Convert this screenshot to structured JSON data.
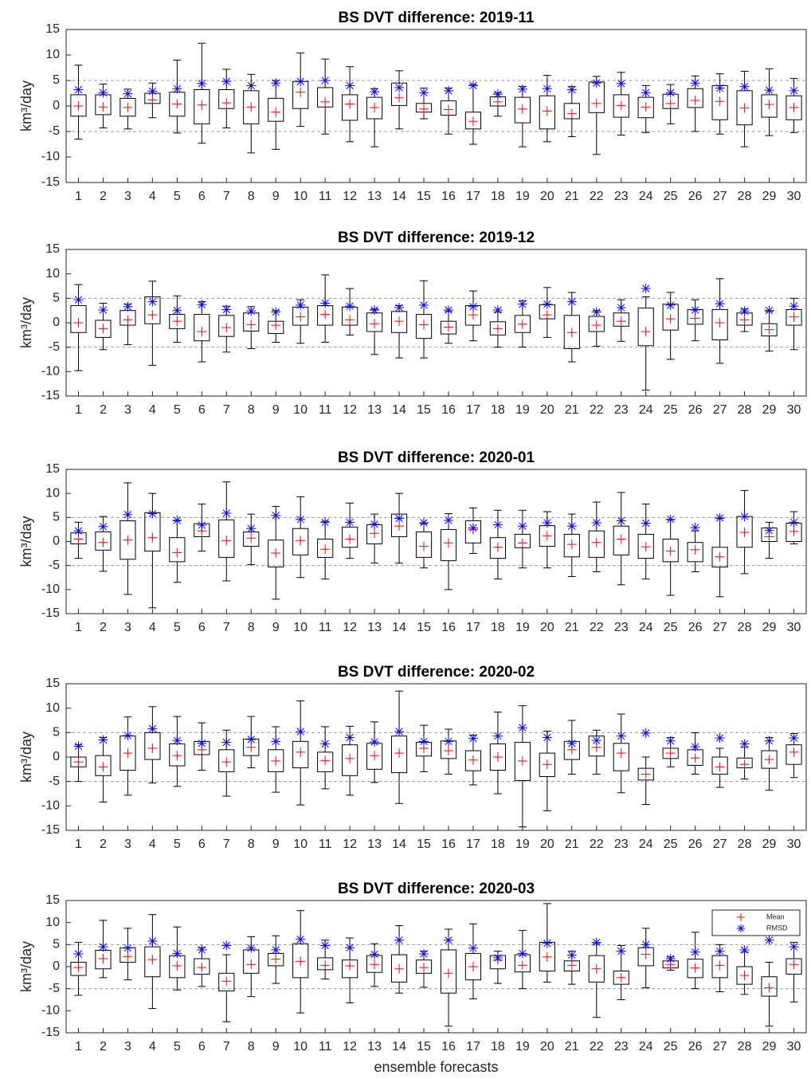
{
  "chart_data": [
    {
      "type": "box",
      "title": "BS DVT difference: 2019-11",
      "ylabel": "km³/day",
      "categories": [
        1,
        2,
        3,
        4,
        5,
        6,
        7,
        8,
        9,
        10,
        11,
        12,
        13,
        14,
        15,
        16,
        17,
        18,
        19,
        20,
        21,
        22,
        23,
        24,
        25,
        26,
        27,
        28,
        29,
        30
      ],
      "whisker_low": [
        -6.5,
        -4.3,
        -4.5,
        -2.3,
        -5.3,
        -7.3,
        -4.3,
        -9.2,
        -8.5,
        -4,
        -5.5,
        -7,
        -8,
        -4.5,
        -2.5,
        -5.5,
        -7.5,
        -2,
        -8,
        -7,
        -6,
        -9.5,
        -5.7,
        -5.2,
        -3.5,
        -5,
        -5.5,
        -8,
        -5.8,
        -5.2
      ],
      "q1": [
        -2,
        -1.7,
        -2,
        0.5,
        -2,
        -3.5,
        -0.5,
        -3.5,
        -3,
        -0.5,
        -0.2,
        -2.8,
        -2.5,
        0.1,
        -1.2,
        -1.8,
        -4.5,
        0,
        -3.3,
        -4.5,
        -2.5,
        -1.3,
        -2.2,
        -2.3,
        -0.5,
        -0.3,
        -2.7,
        -3.7,
        -2.2,
        -2.7
      ],
      "q3": [
        2.2,
        2.2,
        1.5,
        2.5,
        2.7,
        3.2,
        3.2,
        3,
        1.5,
        4.8,
        3.6,
        2.2,
        1.7,
        4.5,
        0.5,
        1,
        -1.2,
        1.8,
        1.7,
        2,
        0.5,
        4.7,
        2.2,
        1.7,
        2.3,
        3.4,
        4,
        3,
        2.2,
        2
      ],
      "whisker_high": [
        8,
        4.3,
        3.3,
        4.5,
        9,
        12.3,
        7.2,
        6.2,
        5,
        10.4,
        9.2,
        7.7,
        3.4,
        6.9,
        3.5,
        3.5,
        4.2,
        2.6,
        3.8,
        6,
        3.8,
        5.8,
        6.6,
        4,
        4.2,
        5.9,
        6.3,
        6.8,
        7.3,
        5.4
      ],
      "mean": [
        0,
        -0.2,
        -0.3,
        1.2,
        0.4,
        0.2,
        0.6,
        -0.2,
        -1.2,
        2.7,
        0.8,
        0.4,
        -0.3,
        1.6,
        -0.6,
        -0.7,
        -3,
        0.8,
        -0.6,
        -1,
        -1.5,
        0.5,
        0.1,
        -0.2,
        0.5,
        1.1,
        0.9,
        -0.4,
        0.3,
        -0.3
      ],
      "rmsd": [
        3.2,
        2.6,
        2.4,
        2.9,
        3.4,
        4.4,
        4.8,
        4,
        4.5,
        4.8,
        5,
        4,
        2.8,
        3.6,
        2.6,
        3,
        4,
        2.3,
        3.3,
        3.4,
        3.2,
        4.5,
        4.4,
        2.6,
        2.6,
        4.5,
        3.5,
        3.8,
        3.1,
        3
      ],
      "ylim": [
        -15,
        15
      ],
      "yticks": [
        -15,
        -10,
        -5,
        0,
        5,
        10,
        15
      ],
      "hlines": [
        -5,
        5
      ],
      "colors": {
        "mean": "#ff0000",
        "rmsd": "#0000ff",
        "box": "#000000"
      }
    },
    {
      "type": "box",
      "title": "BS DVT difference: 2019-12",
      "ylabel": "km³/day",
      "categories": [
        1,
        2,
        3,
        4,
        5,
        6,
        7,
        8,
        9,
        10,
        11,
        12,
        13,
        14,
        15,
        16,
        17,
        18,
        19,
        20,
        21,
        22,
        23,
        24,
        25,
        26,
        27,
        28,
        29,
        30
      ],
      "whisker_low": [
        -9.8,
        -5.5,
        -4.5,
        -8.7,
        -4,
        -8,
        -6,
        -5.3,
        -4,
        -4.2,
        -4,
        -2.5,
        -6.5,
        -7.2,
        -7.2,
        -4.2,
        -3.7,
        -5,
        -5,
        -3,
        -8,
        -4.8,
        -3.8,
        -13.8,
        -7.5,
        -3.7,
        -8.3,
        -1.8,
        -5.8,
        -5.5
      ],
      "q1": [
        -2,
        -3,
        -0.5,
        -0.2,
        -1.2,
        -3.7,
        -2.8,
        -1.7,
        -2.2,
        -0.5,
        -0.5,
        -0.5,
        -1.8,
        -2,
        -3.2,
        -2.3,
        -0.5,
        -2.5,
        -2,
        0.8,
        -5.3,
        -1.8,
        -0.7,
        -4.7,
        -1.5,
        -0.3,
        -3.5,
        -0.5,
        -2.7,
        -0.5
      ],
      "q3": [
        3.5,
        0.5,
        2.5,
        5.3,
        1.7,
        1.7,
        1.5,
        2,
        0.3,
        3.2,
        3.5,
        3.2,
        2,
        2.3,
        1.7,
        0.3,
        3.5,
        0.2,
        1.5,
        3.7,
        1.5,
        1.3,
        2,
        3,
        3.8,
        2.7,
        2.7,
        2,
        -0.2,
        2.7
      ],
      "whisker_high": [
        7.8,
        4,
        3.8,
        8.5,
        5.5,
        4.3,
        3.4,
        3.3,
        2.5,
        4.7,
        9.8,
        7,
        2.8,
        3.5,
        8.6,
        2.3,
        6.5,
        2.2,
        4.5,
        7.2,
        6.2,
        2.5,
        4.7,
        5.3,
        6.2,
        4.7,
        9,
        2.8,
        2.3,
        5
      ],
      "mean": [
        0,
        -1.2,
        0.6,
        1.6,
        0.3,
        -1.8,
        -1,
        -0.4,
        -0.5,
        1.2,
        1.7,
        0.6,
        -0.2,
        0.3,
        -0.4,
        -0.9,
        1.6,
        -1.2,
        -0.3,
        1.6,
        -2,
        -0.5,
        0.3,
        -1.8,
        0.8,
        0.9,
        0,
        0.6,
        -1.4,
        1.2
      ],
      "rmsd": [
        4.7,
        2.6,
        3.3,
        4.3,
        2.5,
        3.7,
        2.7,
        2.4,
        2.2,
        3.6,
        4,
        3.4,
        2.6,
        3.1,
        3.6,
        2.6,
        3.3,
        2.6,
        3.8,
        3.8,
        4.3,
        2.2,
        3.1,
        7,
        3.6,
        2.6,
        3.9,
        2.4,
        2.5,
        3.4
      ],
      "ylim": [
        -15,
        15
      ],
      "yticks": [
        -15,
        -10,
        -5,
        0,
        5,
        10,
        15
      ],
      "hlines": [
        -5,
        5
      ],
      "colors": {
        "mean": "#ff0000",
        "rmsd": "#0000ff",
        "box": "#000000"
      }
    },
    {
      "type": "box",
      "title": "BS DVT difference: 2020-01",
      "ylabel": "km³/day",
      "categories": [
        1,
        2,
        3,
        4,
        5,
        6,
        7,
        8,
        9,
        10,
        11,
        12,
        13,
        14,
        15,
        16,
        17,
        18,
        19,
        20,
        21,
        22,
        23,
        24,
        25,
        26,
        27,
        28,
        29,
        30
      ],
      "whisker_low": [
        -3.5,
        -6.2,
        -11,
        -13.8,
        -8.5,
        -2,
        -8.2,
        -4.8,
        -12,
        -7.5,
        -7.8,
        -3.5,
        -4.5,
        -4.5,
        -5.5,
        -10,
        -2.5,
        -7.8,
        -5.5,
        -5.5,
        -7.3,
        -6.3,
        -9,
        -7.8,
        -11.2,
        -6.3,
        -11.5,
        -6.7,
        -3.5,
        -0.5
      ],
      "q1": [
        -0.5,
        -1.8,
        -3.7,
        -2,
        -4.2,
        1,
        -3.3,
        -1,
        -5.3,
        -2.8,
        -3.3,
        -1.2,
        -0.5,
        1,
        -3.3,
        -4,
        -0.3,
        -3.5,
        -1.3,
        -1,
        -3.2,
        -3.3,
        -2.8,
        -3.5,
        -4.2,
        -4.2,
        -5.3,
        -1.2,
        0,
        0
      ],
      "q3": [
        1.8,
        2,
        4.3,
        6,
        0.8,
        3.7,
        4.5,
        2,
        0.3,
        2.7,
        0.5,
        3,
        3.5,
        5.7,
        2,
        2.5,
        4.3,
        0.8,
        1.5,
        3.3,
        1.5,
        2.2,
        3.2,
        1.5,
        0.5,
        -0.2,
        -1.2,
        5.2,
        2.8,
        3.8
      ],
      "whisker_high": [
        4,
        5.2,
        12.2,
        10,
        4.3,
        7.8,
        12.4,
        5.7,
        7.3,
        9.3,
        4.2,
        8,
        5.7,
        10,
        3.7,
        5.8,
        7,
        6.5,
        6.5,
        6.2,
        5.7,
        8.2,
        10.2,
        7.8,
        4.5,
        2.2,
        4.8,
        10.6,
        4,
        6.2
      ],
      "mean": [
        0.5,
        -0.2,
        0.3,
        0.8,
        -2.3,
        2.2,
        0.2,
        0.7,
        -2.4,
        0.2,
        -1.6,
        0.5,
        1.7,
        3.2,
        -1,
        -0.3,
        2.5,
        -1.2,
        -0.3,
        1.2,
        -0.6,
        -0.2,
        0.5,
        -1.1,
        -2,
        -1.7,
        -3.2,
        1.9,
        1,
        2.1
      ],
      "rmsd": [
        2.2,
        3.1,
        5.6,
        5.8,
        4.4,
        3.4,
        5.9,
        2.7,
        5.4,
        4.6,
        4,
        4,
        3.6,
        4.8,
        3.9,
        4.4,
        2.8,
        3.5,
        3.2,
        3.9,
        3.2,
        3.9,
        4.3,
        3.8,
        4.6,
        2.9,
        4.9,
        5.2,
        2.3,
        4
      ],
      "ylim": [
        -15,
        15
      ],
      "yticks": [
        -15,
        -10,
        -5,
        0,
        5,
        10,
        15
      ],
      "hlines": [
        -5,
        5
      ],
      "colors": {
        "mean": "#ff0000",
        "rmsd": "#0000ff",
        "box": "#000000"
      }
    },
    {
      "type": "box",
      "title": "BS DVT difference: 2020-02",
      "ylabel": "km³/day",
      "categories": [
        1,
        2,
        3,
        4,
        5,
        6,
        7,
        8,
        9,
        10,
        11,
        12,
        13,
        14,
        15,
        16,
        17,
        18,
        19,
        20,
        21,
        22,
        23,
        24,
        25,
        26,
        27,
        28,
        29,
        30
      ],
      "whisker_low": [
        -5,
        -9.2,
        -7.8,
        -5.3,
        -6,
        -2.7,
        -8,
        -2.2,
        -7.2,
        -9.8,
        -6.5,
        -7.8,
        -5.2,
        -9.5,
        -3,
        -3.5,
        -5.7,
        -7.5,
        -14.3,
        -11,
        -3.5,
        -3.5,
        -7.3,
        -9.7,
        -2,
        -3.5,
        -6.2,
        -4.5,
        -6.8,
        -4.2
      ],
      "q1": [
        -2,
        -3.8,
        -2.7,
        -0.5,
        -1.8,
        0.5,
        -3,
        0.3,
        -3,
        -2.2,
        -3,
        -3.8,
        -2.5,
        -3.2,
        0.2,
        -0.3,
        -2.8,
        -2.7,
        -4.8,
        -4,
        -0.5,
        0.2,
        -2.8,
        -4.7,
        -0.3,
        -1.7,
        -3.5,
        -2.2,
        -2.3,
        -1.5
      ],
      "q3": [
        0,
        0.3,
        4.3,
        5,
        2.7,
        3.2,
        1.5,
        3.7,
        1.5,
        3.2,
        1,
        2.5,
        2.8,
        4.3,
        3,
        3.3,
        1.3,
        2.7,
        3,
        0.8,
        3.2,
        4.3,
        2.8,
        -2.3,
        1.8,
        1.5,
        0,
        -0.2,
        1.3,
        2.5
      ],
      "whisker_high": [
        2.5,
        4,
        8.2,
        10.3,
        8.3,
        7,
        5.5,
        8.3,
        6.2,
        11.5,
        6.2,
        6.3,
        7.2,
        13.5,
        6.5,
        5.7,
        4.5,
        9.2,
        10.5,
        5.3,
        7.5,
        5.5,
        8.8,
        0,
        4,
        5,
        1.8,
        2,
        4,
        4.8
      ],
      "mean": [
        -1,
        -2,
        0.8,
        1.8,
        0.3,
        1.5,
        -1,
        2,
        -0.8,
        1,
        -0.7,
        -0.3,
        0.3,
        0.8,
        1.8,
        1.3,
        -0.6,
        0,
        -0.8,
        -1.5,
        1.5,
        2,
        0.8,
        -3.5,
        0.8,
        -0.2,
        -2,
        -1.5,
        -0.5,
        1
      ],
      "rmsd": [
        2.2,
        3.5,
        4.4,
        5.8,
        3.4,
        2.8,
        3,
        3.6,
        3.2,
        5.2,
        2.7,
        4,
        3.1,
        5.2,
        3.2,
        3.2,
        3.8,
        4.3,
        6,
        4,
        2.8,
        3.4,
        4.3,
        4.9,
        3.3,
        2.1,
        3.9,
        2.7,
        3.3,
        3.9
      ],
      "ylim": [
        -15,
        15
      ],
      "yticks": [
        -15,
        -10,
        -5,
        0,
        5,
        10,
        15
      ],
      "hlines": [
        -5,
        5
      ],
      "colors": {
        "mean": "#ff0000",
        "rmsd": "#0000ff",
        "box": "#000000"
      }
    },
    {
      "type": "box",
      "title": "BS DVT difference: 2020-03",
      "ylabel": "km³/day",
      "xlabel": "ensemble forecasts",
      "categories": [
        1,
        2,
        3,
        4,
        5,
        6,
        7,
        8,
        9,
        10,
        11,
        12,
        13,
        14,
        15,
        16,
        17,
        18,
        19,
        20,
        21,
        22,
        23,
        24,
        25,
        26,
        27,
        28,
        29,
        30
      ],
      "whisker_low": [
        -6.5,
        -2.5,
        -3,
        -9.5,
        -5.3,
        -4.5,
        -12.5,
        -6.8,
        -3.8,
        -10.5,
        -2.8,
        -8.2,
        -4.5,
        -6,
        -4.7,
        -13.5,
        -7.3,
        -3.8,
        -5,
        -3.5,
        -4,
        -11.5,
        -7.5,
        -4.8,
        -0.8,
        -5,
        -5.7,
        -6.3,
        -13.5,
        -8
      ],
      "q1": [
        -2,
        -0.5,
        1,
        -2.3,
        -2.5,
        -1.7,
        -5.5,
        -1.5,
        0.2,
        -2.5,
        -0.7,
        -2.5,
        -1.3,
        -3.5,
        -1.5,
        -6,
        -3,
        -0.5,
        -1.2,
        -1,
        -1,
        -3.5,
        -4,
        0.2,
        -0.3,
        -2.5,
        -2.5,
        -4,
        -6.7,
        -1.7
      ],
      "q3": [
        1,
        3.7,
        4.3,
        4.5,
        2.5,
        1.8,
        -1.5,
        3.8,
        3,
        5.2,
        2,
        1.5,
        2.5,
        2.7,
        1.5,
        3.8,
        3,
        2.5,
        2.7,
        5.5,
        1.3,
        2.5,
        -1,
        4.3,
        1.3,
        1.7,
        2.5,
        0,
        -2.3,
        1.8
      ],
      "whisker_high": [
        5.5,
        10.5,
        8.7,
        11.8,
        9,
        4.3,
        2.7,
        6.8,
        7,
        12.7,
        6,
        6.5,
        5.2,
        9.3,
        3.5,
        8.5,
        9.7,
        3.5,
        8.2,
        14.3,
        3.5,
        5.2,
        4.8,
        8.7,
        2.2,
        7.8,
        5,
        3.3,
        1,
        5.5
      ],
      "mean": [
        -0.2,
        1.8,
        2.3,
        1.6,
        0.2,
        -0.2,
        -3.3,
        0.5,
        1.7,
        1.2,
        0.3,
        0.2,
        0.5,
        -0.5,
        -0.2,
        -1.5,
        0,
        1.5,
        0.3,
        2.2,
        0.3,
        -0.5,
        -2.5,
        2.8,
        0.5,
        -0.3,
        0.3,
        -2,
        -4.8,
        0.5
      ],
      "rmsd": [
        2.9,
        4.5,
        4.2,
        5.8,
        3,
        3.8,
        4.8,
        4.2,
        3.8,
        6.2,
        4.8,
        4.3,
        2.8,
        6,
        2.9,
        6,
        4.2,
        2,
        3,
        5.3,
        2.6,
        5.5,
        3.5,
        5,
        1.8,
        3.3,
        3.5,
        3.8,
        6,
        4.5
      ],
      "ylim": [
        -15,
        15
      ],
      "yticks": [
        -15,
        -10,
        -5,
        0,
        5,
        10,
        15
      ],
      "hlines": [
        -5,
        5
      ],
      "colors": {
        "mean": "#ff0000",
        "rmsd": "#0000ff",
        "box": "#000000"
      },
      "legend": {
        "position": "upper right",
        "entries": [
          {
            "name": "Mean",
            "key": "mean"
          },
          {
            "name": "RMSD",
            "key": "rmsd"
          }
        ]
      }
    }
  ]
}
